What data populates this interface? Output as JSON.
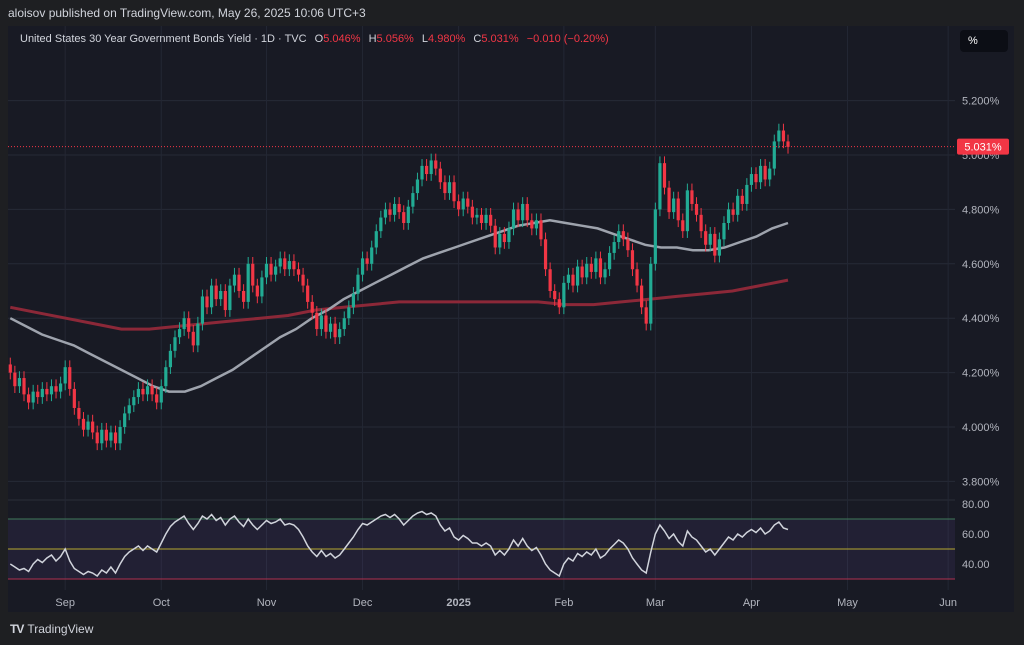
{
  "header": {
    "publisher": "aloisov published on TradingView.com, May 26, 2025 10:06 UTC+3"
  },
  "legend": {
    "symbol": "United States 30 Year Government Bonds Yield · 1D · TVC",
    "open_label": "O",
    "open": "5.046%",
    "high_label": "H",
    "high": "5.056%",
    "low_label": "L",
    "low": "4.980%",
    "close_label": "C",
    "close": "5.031%",
    "change": "−0.010 (−0.20%)"
  },
  "scale_button": "%",
  "price_tag": "5.031%",
  "footer": {
    "brand": "TradingView",
    "logo": "TV"
  },
  "colors": {
    "up": "#22ab94",
    "down": "#f23645",
    "ma_short": "#9ea3ad",
    "ma_long": "#8c2838",
    "rsi_line": "#d1d4dc",
    "rsi_band": "#7e57c2",
    "rsi_mid": "#b5a830"
  },
  "chart_data": {
    "type": "candlestick",
    "y_axis_ticks": [
      "5.200%",
      "5.000%",
      "4.800%",
      "4.600%",
      "4.400%",
      "4.200%",
      "4.000%",
      "3.800%"
    ],
    "y_axis_values": [
      5.2,
      5.0,
      4.8,
      4.6,
      4.4,
      4.2,
      4.0,
      3.8
    ],
    "ylim": [
      3.77,
      5.37
    ],
    "x_axis_labels": [
      {
        "label": "Sep",
        "index": 12
      },
      {
        "label": "Oct",
        "index": 33
      },
      {
        "label": "Nov",
        "index": 56
      },
      {
        "label": "Dec",
        "index": 77
      },
      {
        "label": "2025",
        "index": 98
      },
      {
        "label": "Feb",
        "index": 121
      },
      {
        "label": "Mar",
        "index": 141
      },
      {
        "label": "Apr",
        "index": 162
      },
      {
        "label": "May",
        "index": 183
      },
      {
        "label": "Jun",
        "index": 205
      }
    ],
    "total_slots": 207,
    "candles": [
      [
        4.23,
        4.2
      ],
      [
        4.2,
        4.15
      ],
      [
        4.15,
        4.18
      ],
      [
        4.18,
        4.12
      ],
      [
        4.12,
        4.09
      ],
      [
        4.09,
        4.13
      ],
      [
        4.13,
        4.11
      ],
      [
        4.11,
        4.14
      ],
      [
        4.14,
        4.12
      ],
      [
        4.12,
        4.15
      ],
      [
        4.15,
        4.13
      ],
      [
        4.13,
        4.16
      ],
      [
        4.16,
        4.22
      ],
      [
        4.22,
        4.14
      ],
      [
        4.14,
        4.07
      ],
      [
        4.07,
        4.03
      ],
      [
        4.03,
        3.99
      ],
      [
        3.99,
        4.02
      ],
      [
        4.02,
        3.98
      ],
      [
        3.98,
        3.94
      ],
      [
        3.94,
        3.99
      ],
      [
        3.99,
        3.95
      ],
      [
        3.95,
        3.98
      ],
      [
        3.98,
        3.94
      ],
      [
        3.94,
        4.0
      ],
      [
        4.0,
        4.05
      ],
      [
        4.05,
        4.08
      ],
      [
        4.08,
        4.11
      ],
      [
        4.11,
        4.14
      ],
      [
        4.14,
        4.12
      ],
      [
        4.12,
        4.15
      ],
      [
        4.15,
        4.12
      ],
      [
        4.12,
        4.09
      ],
      [
        4.09,
        4.15
      ],
      [
        4.15,
        4.22
      ],
      [
        4.22,
        4.28
      ],
      [
        4.28,
        4.33
      ],
      [
        4.33,
        4.36
      ],
      [
        4.36,
        4.4
      ],
      [
        4.4,
        4.35
      ],
      [
        4.35,
        4.3
      ],
      [
        4.3,
        4.38
      ],
      [
        4.38,
        4.48
      ],
      [
        4.48,
        4.44
      ],
      [
        4.44,
        4.52
      ],
      [
        4.52,
        4.47
      ],
      [
        4.47,
        4.5
      ],
      [
        4.5,
        4.43
      ],
      [
        4.43,
        4.52
      ],
      [
        4.52,
        4.56
      ],
      [
        4.56,
        4.5
      ],
      [
        4.5,
        4.46
      ],
      [
        4.46,
        4.6
      ],
      [
        4.6,
        4.52
      ],
      [
        4.52,
        4.48
      ],
      [
        4.48,
        4.55
      ],
      [
        4.55,
        4.6
      ],
      [
        4.6,
        4.56
      ],
      [
        4.56,
        4.59
      ],
      [
        4.59,
        4.62
      ],
      [
        4.62,
        4.58
      ],
      [
        4.58,
        4.61
      ],
      [
        4.61,
        4.58
      ],
      [
        4.58,
        4.56
      ],
      [
        4.56,
        4.52
      ],
      [
        4.52,
        4.46
      ],
      [
        4.46,
        4.42
      ],
      [
        4.42,
        4.36
      ],
      [
        4.36,
        4.41
      ],
      [
        4.41,
        4.35
      ],
      [
        4.35,
        4.38
      ],
      [
        4.38,
        4.33
      ],
      [
        4.33,
        4.36
      ],
      [
        4.36,
        4.4
      ],
      [
        4.4,
        4.44
      ],
      [
        4.44,
        4.49
      ],
      [
        4.49,
        4.56
      ],
      [
        4.56,
        4.62
      ],
      [
        4.62,
        4.6
      ],
      [
        4.6,
        4.66
      ],
      [
        4.66,
        4.72
      ],
      [
        4.72,
        4.77
      ],
      [
        4.77,
        4.8
      ],
      [
        4.8,
        4.78
      ],
      [
        4.78,
        4.82
      ],
      [
        4.82,
        4.79
      ],
      [
        4.79,
        4.75
      ],
      [
        4.75,
        4.81
      ],
      [
        4.81,
        4.86
      ],
      [
        4.86,
        4.91
      ],
      [
        4.91,
        4.96
      ],
      [
        4.96,
        4.93
      ],
      [
        4.93,
        4.98
      ],
      [
        4.98,
        4.95
      ],
      [
        4.95,
        4.9
      ],
      [
        4.9,
        4.86
      ],
      [
        4.86,
        4.9
      ],
      [
        4.9,
        4.83
      ],
      [
        4.83,
        4.8
      ],
      [
        4.8,
        4.84
      ],
      [
        4.84,
        4.81
      ],
      [
        4.81,
        4.77
      ],
      [
        4.77,
        4.78
      ],
      [
        4.78,
        4.75
      ],
      [
        4.75,
        4.78
      ],
      [
        4.78,
        4.74
      ],
      [
        4.74,
        4.66
      ],
      [
        4.66,
        4.71
      ],
      [
        4.71,
        4.68
      ],
      [
        4.68,
        4.73
      ],
      [
        4.73,
        4.8
      ],
      [
        4.8,
        4.76
      ],
      [
        4.76,
        4.82
      ],
      [
        4.82,
        4.76
      ],
      [
        4.76,
        4.73
      ],
      [
        4.73,
        4.76
      ],
      [
        4.76,
        4.69
      ],
      [
        4.69,
        4.58
      ],
      [
        4.58,
        4.5
      ],
      [
        4.5,
        4.47
      ],
      [
        4.47,
        4.44
      ],
      [
        4.44,
        4.53
      ],
      [
        4.53,
        4.56
      ],
      [
        4.56,
        4.52
      ],
      [
        4.52,
        4.59
      ],
      [
        4.59,
        4.55
      ],
      [
        4.55,
        4.6
      ],
      [
        4.6,
        4.57
      ],
      [
        4.57,
        4.62
      ],
      [
        4.62,
        4.55
      ],
      [
        4.55,
        4.58
      ],
      [
        4.58,
        4.64
      ],
      [
        4.64,
        4.68
      ],
      [
        4.68,
        4.72
      ],
      [
        4.72,
        4.69
      ],
      [
        4.69,
        4.65
      ],
      [
        4.65,
        4.58
      ],
      [
        4.58,
        4.52
      ],
      [
        4.52,
        4.44
      ],
      [
        4.44,
        4.38
      ],
      [
        4.38,
        4.6
      ],
      [
        4.6,
        4.8
      ],
      [
        4.8,
        4.97
      ],
      [
        4.97,
        4.88
      ],
      [
        4.88,
        4.79
      ],
      [
        4.79,
        4.84
      ],
      [
        4.84,
        4.76
      ],
      [
        4.76,
        4.72
      ],
      [
        4.72,
        4.87
      ],
      [
        4.87,
        4.82
      ],
      [
        4.82,
        4.78
      ],
      [
        4.78,
        4.72
      ],
      [
        4.72,
        4.67
      ],
      [
        4.67,
        4.71
      ],
      [
        4.71,
        4.63
      ],
      [
        4.63,
        4.69
      ],
      [
        4.69,
        4.75
      ],
      [
        4.75,
        4.8
      ],
      [
        4.8,
        4.78
      ],
      [
        4.78,
        4.85
      ],
      [
        4.85,
        4.82
      ],
      [
        4.82,
        4.89
      ],
      [
        4.89,
        4.93
      ],
      [
        4.93,
        4.9
      ],
      [
        4.9,
        4.96
      ],
      [
        4.96,
        4.91
      ],
      [
        4.91,
        4.95
      ],
      [
        4.95,
        5.05
      ],
      [
        5.05,
        5.09
      ],
      [
        5.09,
        5.05
      ],
      [
        5.05,
        5.03
      ]
    ],
    "moving_average_short": [
      4.4,
      4.37,
      4.34,
      4.32,
      4.3,
      4.27,
      4.24,
      4.21,
      4.18,
      4.15,
      4.13,
      4.13,
      4.15,
      4.18,
      4.21,
      4.25,
      4.29,
      4.33,
      4.36,
      4.4,
      4.43,
      4.47,
      4.5,
      4.53,
      4.56,
      4.59,
      4.62,
      4.64,
      4.66,
      4.68,
      4.7,
      4.72,
      4.74,
      4.75,
      4.76,
      4.75,
      4.74,
      4.73,
      4.71,
      4.69,
      4.67,
      4.66,
      4.66,
      4.65,
      4.65,
      4.66,
      4.68,
      4.7,
      4.73,
      4.75
    ],
    "moving_average_long": [
      4.44,
      4.42,
      4.4,
      4.38,
      4.36,
      4.36,
      4.37,
      4.38,
      4.39,
      4.4,
      4.41,
      4.43,
      4.44,
      4.45,
      4.46,
      4.46,
      4.46,
      4.46,
      4.46,
      4.46,
      4.45,
      4.45,
      4.46,
      4.47,
      4.48,
      4.49,
      4.5,
      4.52,
      4.54
    ],
    "rsi": {
      "y_axis_ticks": [
        "80.00",
        "60.00",
        "40.00"
      ],
      "upper": 70,
      "middle": 50,
      "lower": 30,
      "values": [
        40,
        38,
        36,
        37,
        35,
        40,
        43,
        41,
        44,
        46,
        42,
        45,
        50,
        42,
        37,
        35,
        33,
        35,
        34,
        32,
        36,
        34,
        38,
        34,
        40,
        45,
        48,
        50,
        52,
        49,
        52,
        50,
        48,
        54,
        60,
        65,
        68,
        70,
        72,
        67,
        63,
        67,
        72,
        70,
        73,
        69,
        71,
        66,
        70,
        72,
        68,
        65,
        70,
        66,
        63,
        66,
        69,
        67,
        68,
        70,
        66,
        67,
        66,
        63,
        58,
        52,
        48,
        45,
        49,
        45,
        47,
        44,
        46,
        50,
        54,
        58,
        63,
        67,
        66,
        68,
        70,
        72,
        73,
        71,
        73,
        70,
        66,
        69,
        72,
        74,
        75,
        73,
        74,
        72,
        66,
        62,
        64,
        58,
        56,
        59,
        57,
        54,
        54,
        52,
        54,
        52,
        46,
        49,
        46,
        50,
        56,
        52,
        57,
        52,
        49,
        51,
        46,
        40,
        36,
        34,
        32,
        40,
        44,
        42,
        47,
        45,
        48,
        46,
        50,
        44,
        46,
        50,
        53,
        56,
        54,
        50,
        44,
        40,
        36,
        34,
        48,
        60,
        66,
        62,
        57,
        60,
        55,
        52,
        62,
        58,
        56,
        52,
        48,
        50,
        46,
        50,
        54,
        58,
        56,
        60,
        58,
        61,
        63,
        61,
        64,
        60,
        62,
        66,
        68,
        64,
        63
      ]
    },
    "last_price": 5.031
  }
}
